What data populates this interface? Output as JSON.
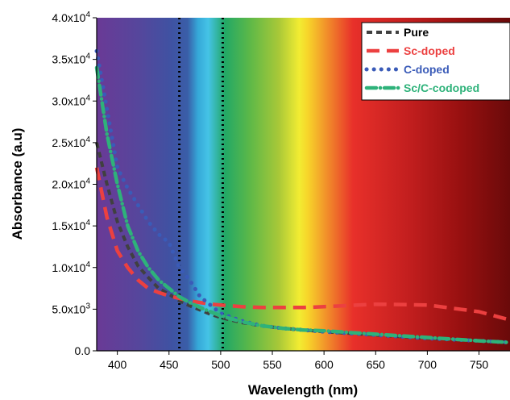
{
  "chart_data": {
    "type": "line",
    "xlabel": "Wavelength (nm)",
    "ylabel": "Absorbance (a.u)",
    "xlim": [
      380,
      780
    ],
    "ylim": [
      0,
      40000
    ],
    "background": "visible spectrum gradient",
    "x_ticks": [
      400,
      450,
      500,
      550,
      600,
      650,
      700,
      750
    ],
    "x_tick_labels": [
      "400",
      "450",
      "500",
      "550",
      "600",
      "650",
      "700",
      "750"
    ],
    "y_ticks": [
      {
        "value": 0,
        "base": "0.0",
        "exp": ""
      },
      {
        "value": 5000,
        "base": "5.0x10",
        "exp": "3"
      },
      {
        "value": 10000,
        "base": "1.0x10",
        "exp": "4"
      },
      {
        "value": 15000,
        "base": "1.5x10",
        "exp": "4"
      },
      {
        "value": 20000,
        "base": "2.0x10",
        "exp": "4"
      },
      {
        "value": 25000,
        "base": "2.5x10",
        "exp": "4"
      },
      {
        "value": 30000,
        "base": "3.0x10",
        "exp": "4"
      },
      {
        "value": 35000,
        "base": "3.5x10",
        "exp": "4"
      },
      {
        "value": 40000,
        "base": "4.0x10",
        "exp": "4"
      }
    ],
    "vertical_markers": [
      460,
      502
    ],
    "legend_position": "top-right",
    "series": [
      {
        "name": "Pure",
        "color": "#404040",
        "style": "dash",
        "x": [
          380,
          390,
          400,
          410,
          420,
          430,
          440,
          450,
          460,
          470,
          480,
          490,
          500,
          520,
          540,
          560,
          580,
          600,
          650,
          700,
          750,
          780
        ],
        "y": [
          25000,
          20000,
          15500,
          12500,
          10200,
          8800,
          7500,
          6800,
          6000,
          5400,
          4900,
          4400,
          4000,
          3400,
          3000,
          2700,
          2500,
          2300,
          1900,
          1500,
          1200,
          1000
        ]
      },
      {
        "name": "Sc-doped",
        "color": "#ec4040",
        "style": "long-dash",
        "x": [
          380,
          390,
          400,
          410,
          420,
          430,
          440,
          450,
          460,
          470,
          480,
          490,
          500,
          520,
          540,
          560,
          580,
          600,
          650,
          700,
          750,
          780
        ],
        "y": [
          22000,
          16000,
          12000,
          10000,
          8500,
          7500,
          7000,
          6600,
          6300,
          6000,
          5800,
          5600,
          5500,
          5300,
          5200,
          5200,
          5200,
          5300,
          5600,
          5500,
          4700,
          3700
        ]
      },
      {
        "name": "C-doped",
        "color": "#3a5bb8",
        "style": "dot",
        "x": [
          380,
          390,
          400,
          410,
          420,
          430,
          440,
          450,
          460,
          470,
          480,
          490,
          500,
          520,
          540,
          560,
          580,
          600,
          650,
          700,
          750,
          780
        ],
        "y": [
          36000,
          29000,
          22000,
          19500,
          17500,
          15500,
          14000,
          13000,
          10000,
          8500,
          6500,
          5500,
          4500,
          3600,
          3000,
          2700,
          2500,
          2300,
          1900,
          1500,
          1200,
          1000
        ]
      },
      {
        "name": "Sc/C-codoped",
        "color": "#2eb27a",
        "style": "dash-dot",
        "x": [
          380,
          390,
          400,
          410,
          420,
          430,
          440,
          450,
          460,
          470,
          480,
          490,
          500,
          520,
          540,
          560,
          580,
          600,
          650,
          700,
          750,
          780
        ],
        "y": [
          34000,
          26000,
          20000,
          15000,
          12000,
          10000,
          8500,
          7500,
          6500,
          5800,
          5200,
          4700,
          4200,
          3500,
          3000,
          2700,
          2500,
          2400,
          2000,
          1600,
          1200,
          1000
        ]
      }
    ]
  }
}
